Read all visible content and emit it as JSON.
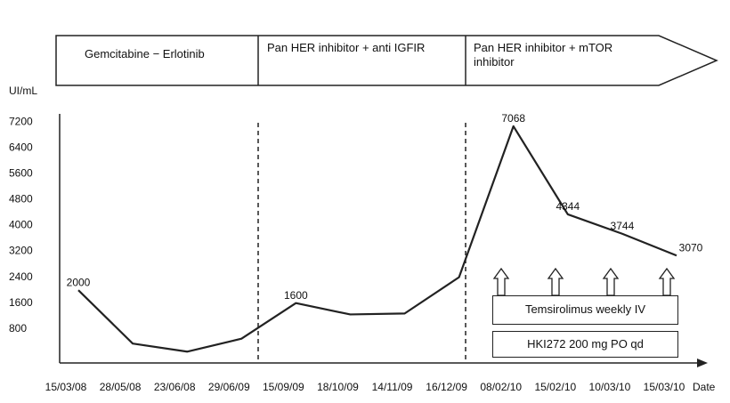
{
  "chart_data": {
    "type": "line",
    "y_label": "UI/mL",
    "x_label": "Date",
    "categories": [
      "15/03/08",
      "28/05/08",
      "23/06/08",
      "29/06/09",
      "15/09/09",
      "18/10/09",
      "14/11/09",
      "16/12/09",
      "08/02/10",
      "15/02/10",
      "10/03/10",
      "15/03/10"
    ],
    "values": [
      2000,
      350,
      100,
      500,
      1600,
      1250,
      1280,
      2400,
      7068,
      4344,
      3744,
      3070
    ],
    "value_labels": [
      "2000",
      null,
      null,
      null,
      "1600",
      null,
      null,
      null,
      "7068",
      "4344",
      "3744",
      "3070"
    ],
    "color": "#222222",
    "ylim": [
      -250,
      7450
    ],
    "yticks": [
      800,
      1600,
      2400,
      3200,
      4000,
      4800,
      5600,
      6400,
      7200
    ],
    "grid": false,
    "phases": [
      "Gemcitabine − Erlotinib",
      "Pan HER inhibitor + anti IGFIR",
      "Pan HER inhibitor + mTOR inhibitor"
    ],
    "treatments": [
      "Temsirolimus weekly IV",
      "HKI272 200 mg PO qd"
    ]
  }
}
